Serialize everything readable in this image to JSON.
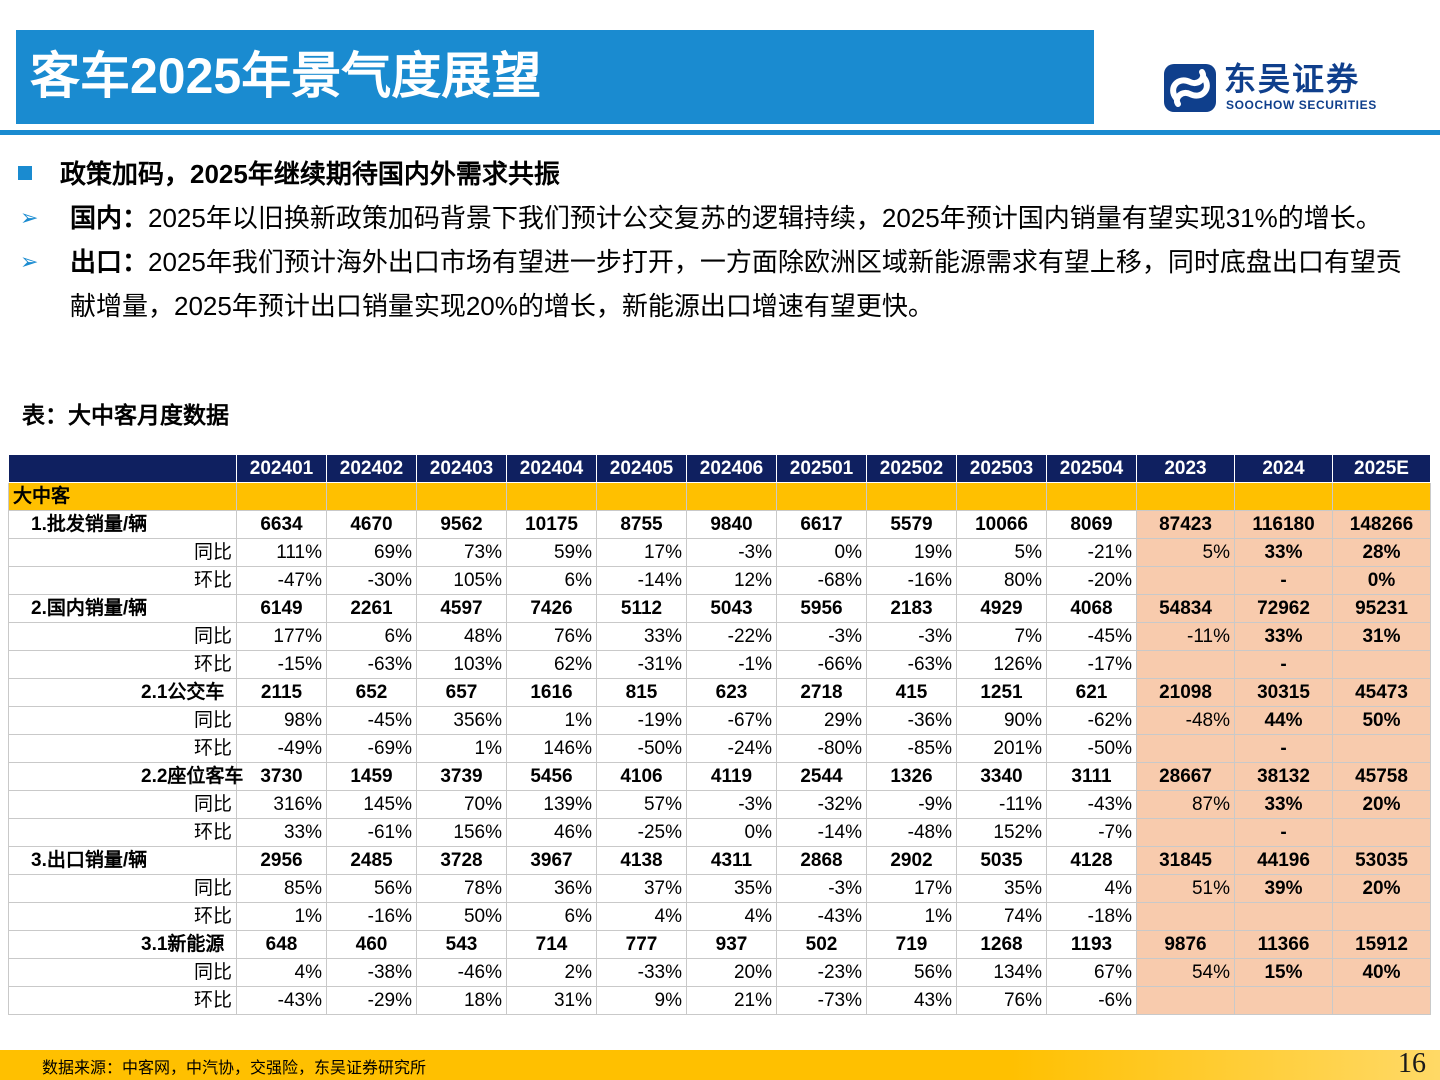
{
  "header": {
    "title": "客车2025年景气度展望"
  },
  "logo": {
    "name_cn": "东吴证券",
    "name_en": "SOOCHOW SECURITIES"
  },
  "bullets": {
    "main": "政策加码，2025年继续期待国内外需求共振",
    "items": [
      {
        "label": "国内：",
        "text": "2025年以旧换新政策加码背景下我们预计公交复苏的逻辑持续，2025年预计国内销量有望实现31%的增长。"
      },
      {
        "label": "出口：",
        "text": "2025年我们预计海外出口市场有望进一步打开，一方面除欧洲区域新能源需求有望上移，同时底盘出口有望贡献增量，2025年预计出口销量实现20%的增长，新能源出口增速有望更快。"
      }
    ]
  },
  "table": {
    "caption": "表：大中客月度数据",
    "columns": [
      "",
      "202401",
      "202402",
      "202403",
      "202404",
      "202405",
      "202406",
      "202501",
      "202502",
      "202503",
      "202504",
      "2023",
      "2024",
      "2025E"
    ],
    "section": "大中客",
    "rows": [
      {
        "label": "1.批发销量/辆",
        "kind": "main",
        "cells": [
          "6634",
          "4670",
          "9562",
          "10175",
          "8755",
          "9840",
          "6617",
          "5579",
          "10066",
          "8069",
          "87423",
          "116180",
          "148266"
        ]
      },
      {
        "label": "同比",
        "kind": "sub",
        "cells": [
          "111%",
          "69%",
          "73%",
          "59%",
          "17%",
          "-3%",
          "0%",
          "19%",
          "5%",
          "-21%",
          "5%",
          "33%",
          "28%"
        ]
      },
      {
        "label": "环比",
        "kind": "sub",
        "cells": [
          "-47%",
          "-30%",
          "105%",
          "6%",
          "-14%",
          "12%",
          "-68%",
          "-16%",
          "80%",
          "-20%",
          "",
          "-",
          "0%"
        ]
      },
      {
        "label": "2.国内销量/辆",
        "kind": "main",
        "cells": [
          "6149",
          "2261",
          "4597",
          "7426",
          "5112",
          "5043",
          "5956",
          "2183",
          "4929",
          "4068",
          "54834",
          "72962",
          "95231"
        ]
      },
      {
        "label": "同比",
        "kind": "sub",
        "cells": [
          "177%",
          "6%",
          "48%",
          "76%",
          "33%",
          "-22%",
          "-3%",
          "-3%",
          "7%",
          "-45%",
          "-11%",
          "33%",
          "31%"
        ]
      },
      {
        "label": "环比",
        "kind": "sub",
        "cells": [
          "-15%",
          "-63%",
          "103%",
          "62%",
          "-31%",
          "-1%",
          "-66%",
          "-63%",
          "126%",
          "-17%",
          "",
          "-",
          ""
        ]
      },
      {
        "label": "2.1公交车",
        "kind": "main",
        "indent": true,
        "cells": [
          "2115",
          "652",
          "657",
          "1616",
          "815",
          "623",
          "2718",
          "415",
          "1251",
          "621",
          "21098",
          "30315",
          "45473"
        ]
      },
      {
        "label": "同比",
        "kind": "sub",
        "cells": [
          "98%",
          "-45%",
          "356%",
          "1%",
          "-19%",
          "-67%",
          "29%",
          "-36%",
          "90%",
          "-62%",
          "-48%",
          "44%",
          "50%"
        ]
      },
      {
        "label": "环比",
        "kind": "sub",
        "cells": [
          "-49%",
          "-69%",
          "1%",
          "146%",
          "-50%",
          "-24%",
          "-80%",
          "-85%",
          "201%",
          "-50%",
          "",
          "-",
          ""
        ]
      },
      {
        "label": "2.2座位客车",
        "kind": "main",
        "indent": true,
        "cells": [
          "3730",
          "1459",
          "3739",
          "5456",
          "4106",
          "4119",
          "2544",
          "1326",
          "3340",
          "3111",
          "28667",
          "38132",
          "45758"
        ]
      },
      {
        "label": "同比",
        "kind": "sub",
        "cells": [
          "316%",
          "145%",
          "70%",
          "139%",
          "57%",
          "-3%",
          "-32%",
          "-9%",
          "-11%",
          "-43%",
          "87%",
          "33%",
          "20%"
        ]
      },
      {
        "label": "环比",
        "kind": "sub",
        "cells": [
          "33%",
          "-61%",
          "156%",
          "46%",
          "-25%",
          "0%",
          "-14%",
          "-48%",
          "152%",
          "-7%",
          "",
          "-",
          ""
        ]
      },
      {
        "label": "3.出口销量/辆",
        "kind": "main",
        "cells": [
          "2956",
          "2485",
          "3728",
          "3967",
          "4138",
          "4311",
          "2868",
          "2902",
          "5035",
          "4128",
          "31845",
          "44196",
          "53035"
        ]
      },
      {
        "label": "同比",
        "kind": "sub",
        "cells": [
          "85%",
          "56%",
          "78%",
          "36%",
          "37%",
          "35%",
          "-3%",
          "17%",
          "35%",
          "4%",
          "51%",
          "39%",
          "20%"
        ]
      },
      {
        "label": "环比",
        "kind": "sub",
        "cells": [
          "1%",
          "-16%",
          "50%",
          "6%",
          "4%",
          "4%",
          "-43%",
          "1%",
          "74%",
          "-18%",
          "",
          "",
          ""
        ]
      },
      {
        "label": "3.1新能源",
        "kind": "main",
        "indent": true,
        "cells": [
          "648",
          "460",
          "543",
          "714",
          "777",
          "937",
          "502",
          "719",
          "1268",
          "1193",
          "9876",
          "11366",
          "15912"
        ]
      },
      {
        "label": "同比",
        "kind": "sub",
        "cells": [
          "4%",
          "-38%",
          "-46%",
          "2%",
          "-33%",
          "20%",
          "-23%",
          "56%",
          "134%",
          "67%",
          "54%",
          "15%",
          "40%"
        ]
      },
      {
        "label": "环比",
        "kind": "sub",
        "cells": [
          "-43%",
          "-29%",
          "18%",
          "31%",
          "9%",
          "21%",
          "-73%",
          "43%",
          "76%",
          "-6%",
          "",
          "",
          ""
        ]
      }
    ],
    "colors": {
      "header_bg": "#0f2060",
      "section_bg": "#ffc000",
      "annual_bg": "#f8cbad"
    }
  },
  "footer": {
    "source": "数据来源：中客网，中汽协，交强险，东吴证券研究所",
    "page": "16"
  }
}
